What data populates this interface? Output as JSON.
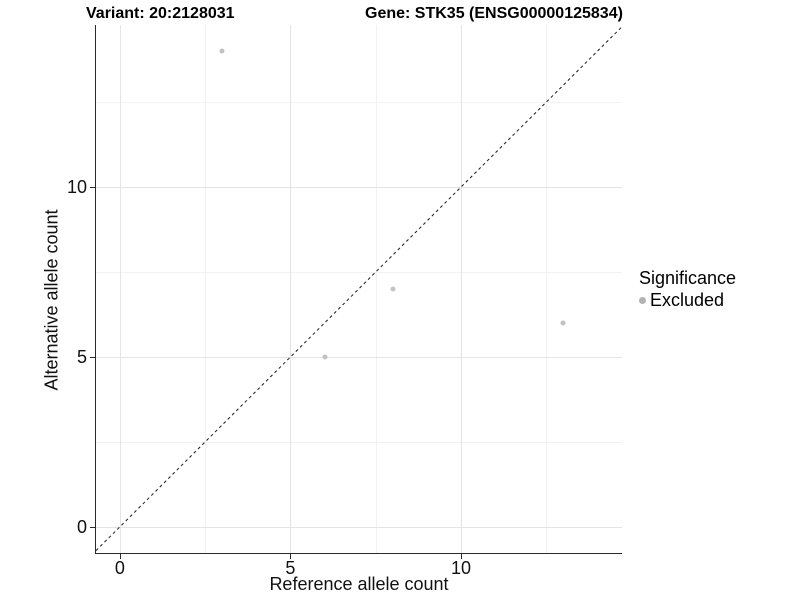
{
  "header": {
    "variant_title": "Variant: 20:2128031",
    "gene_title": "Gene: STK35 (ENSG00000125834)"
  },
  "chart_data": {
    "type": "scatter",
    "title": "Variant: 20:2128031    Gene: STK35 (ENSG00000125834)",
    "xlabel": "Reference allele count",
    "ylabel": "Alternative allele count",
    "xlim": [
      -0.7,
      14.72
    ],
    "ylim": [
      -0.77,
      14.77
    ],
    "x_ticks": [
      0,
      5,
      10
    ],
    "y_ticks": [
      0,
      5,
      10
    ],
    "x_minor_ticks": [
      2.5,
      7.5,
      12.5
    ],
    "y_minor_ticks": [
      2.5,
      7.5,
      12.5
    ],
    "grid": true,
    "background": "#ffffff",
    "series": [
      {
        "name": "Excluded",
        "color": "#c2c2c2",
        "points": [
          [
            3,
            14
          ],
          [
            6,
            5
          ],
          [
            8,
            7
          ],
          [
            13,
            6
          ]
        ]
      }
    ],
    "abline": {
      "slope": 1,
      "intercept": 0,
      "style": "dashed",
      "color": "#1a1a1a"
    },
    "legend": {
      "title": "Significance",
      "position": "right",
      "items": [
        {
          "label": "Excluded",
          "color": "#b3b3b3"
        }
      ]
    }
  }
}
